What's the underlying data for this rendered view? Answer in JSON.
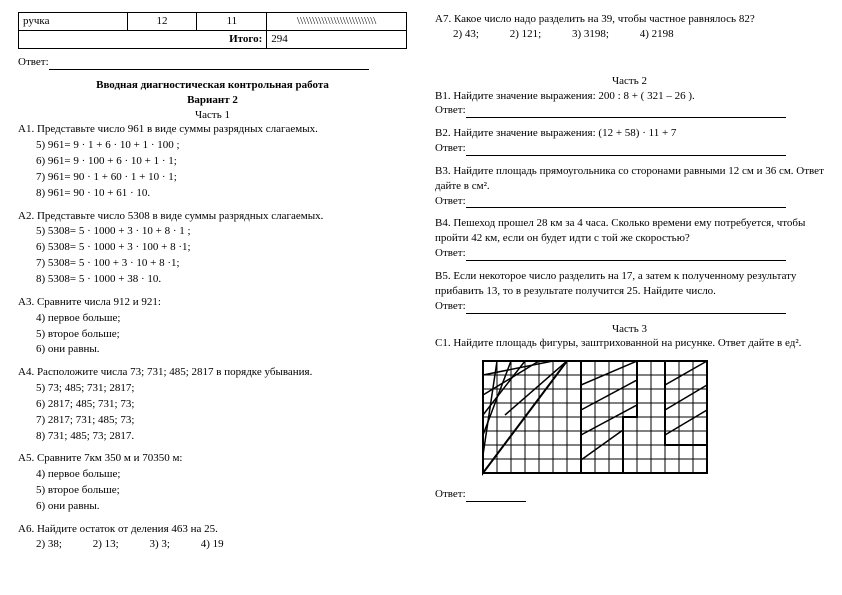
{
  "table": {
    "row_label": "ручка",
    "c1": "12",
    "c2": "11",
    "c3": "\\\\\\\\\\\\\\\\\\\\\\\\\\\\\\\\\\\\\\\\\\\\\\\\\\\\",
    "total_label": "Итого:",
    "total_value": "294"
  },
  "answer_label": "Ответ:",
  "titles": {
    "main": "Вводная диагностическая контрольная работа",
    "variant": "Вариант 2",
    "part1": "Часть 1",
    "part2": "Часть 2",
    "part3": "Часть 3"
  },
  "A1": {
    "q": "А1. Представьте число 961 в виде суммы разрядных слагаемых.",
    "o": [
      "5)  961= 9 · 1 + 6 · 10 + 1 · 100 ;",
      "6)  961= 9 · 100 + 6 · 10 + 1 · 1;",
      "7)  961= 90 · 1 + 60 · 1 + 10 · 1;",
      "8)  961= 90 · 10 + 61 · 10."
    ]
  },
  "A2": {
    "q": "А2. Представьте число 5308 в виде суммы разрядных слагаемых.",
    "o": [
      "5)  5308= 5 · 1000 + 3 · 10 + 8 · 1 ;",
      "6)  5308= 5 · 1000 + 3 · 100 + 8 ·1;",
      "7)  5308= 5 · 100 + 3 · 10 + 8 ·1;",
      "8)  5308= 5 · 1000 + 38 · 10."
    ]
  },
  "A3": {
    "q": "А3. Сравните числа 912 и 921:",
    "o": [
      "4)  первое больше;",
      "5)  второе больше;",
      "6)  они равны."
    ]
  },
  "A4": {
    "q": "А4. Расположите числа 73; 731; 485; 2817 в порядке убывания.",
    "o": [
      "5)  73; 485; 731; 2817;",
      "6)  2817; 485; 731; 73;",
      "7)  2817; 731; 485; 73;",
      "8)  731; 485; 73; 2817."
    ]
  },
  "A5": {
    "q": "А5. Сравните 7км 350 м и 70350 м:",
    "o": [
      "4)  первое больше;",
      "5)  второе больше;",
      "6)  они равны."
    ]
  },
  "A6": {
    "q": "А6. Найдите остаток от деления 463 на 25.",
    "o": [
      "2)  38;",
      "2) 13;",
      "3) 3;",
      "4) 19"
    ]
  },
  "A7": {
    "q": "А7. Какое число надо разделить на 39, чтобы частное равнялось 82?",
    "o": [
      "2)  43;",
      "2) 121;",
      "3) 3198;",
      "4) 2198"
    ]
  },
  "B1": {
    "q": "В1. Найдите значение выражения: 200 : 8 + ( 321 – 26 )."
  },
  "B2": {
    "q": "В2. Найдите значение выражения: (12 + 58) · 11 + 7"
  },
  "B3": {
    "q": "В3. Найдите площадь прямоугольника со сторонами равными 12 см и 36 см. Ответ дайте в см²."
  },
  "B4": {
    "q": "В4. Пешеход прошел 28 км за 4 часа. Сколько времени ему потребуется, чтобы пройти 42 км, если он будет идти с той же скоростью?"
  },
  "B5": {
    "q": "В5. Если некоторое число разделить на 17, а затем к полученному результату прибавить 13, то в результате получится 25. Найдите число."
  },
  "C1": {
    "q": "С1. Найдите площадь фигуры, заштрихованной на рисунке. Ответ дайте в ед²."
  },
  "figure": {
    "grid_color": "#000000",
    "stroke_width": 1,
    "cols": 16,
    "rows": 8,
    "cell": 14
  }
}
